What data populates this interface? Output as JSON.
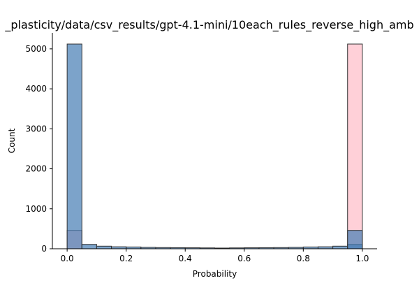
{
  "chart_data": {
    "type": "bar",
    "title": "_plasticity/data/csv_results/gpt-4.1-mini/10each_rules_reverse_high_amb",
    "xlabel": "Probability",
    "ylabel": "Count",
    "xlim": [
      -0.05,
      1.05
    ],
    "ylim": [
      0,
      5400
    ],
    "xticks": [
      0.0,
      0.2,
      0.4,
      0.6,
      0.8,
      1.0
    ],
    "xtick_labels": [
      "0.0",
      "0.2",
      "0.4",
      "0.6",
      "0.8",
      "1.0"
    ],
    "yticks": [
      0,
      1000,
      2000,
      3000,
      4000,
      5000
    ],
    "ytick_labels": [
      "0",
      "1000",
      "2000",
      "3000",
      "4000",
      "5000"
    ],
    "grid": false,
    "bin_edges": [
      0.0,
      0.05,
      0.1,
      0.15,
      0.2,
      0.25,
      0.3,
      0.35,
      0.4,
      0.45,
      0.5,
      0.55,
      0.6,
      0.65,
      0.7,
      0.75,
      0.8,
      0.85,
      0.9,
      0.95,
      1.0
    ],
    "series": [
      {
        "color": "#ffc0cb",
        "values": [
          460,
          0,
          0,
          0,
          0,
          0,
          0,
          0,
          0,
          0,
          0,
          0,
          0,
          0,
          0,
          0,
          0,
          0,
          0,
          0,
          5120
        ]
      },
      {
        "color": "#4a7fb5",
        "values": [
          5120,
          110,
          65,
          50,
          45,
          35,
          30,
          28,
          25,
          22,
          18,
          22,
          25,
          28,
          30,
          35,
          45,
          50,
          65,
          110,
          460
        ]
      }
    ]
  }
}
